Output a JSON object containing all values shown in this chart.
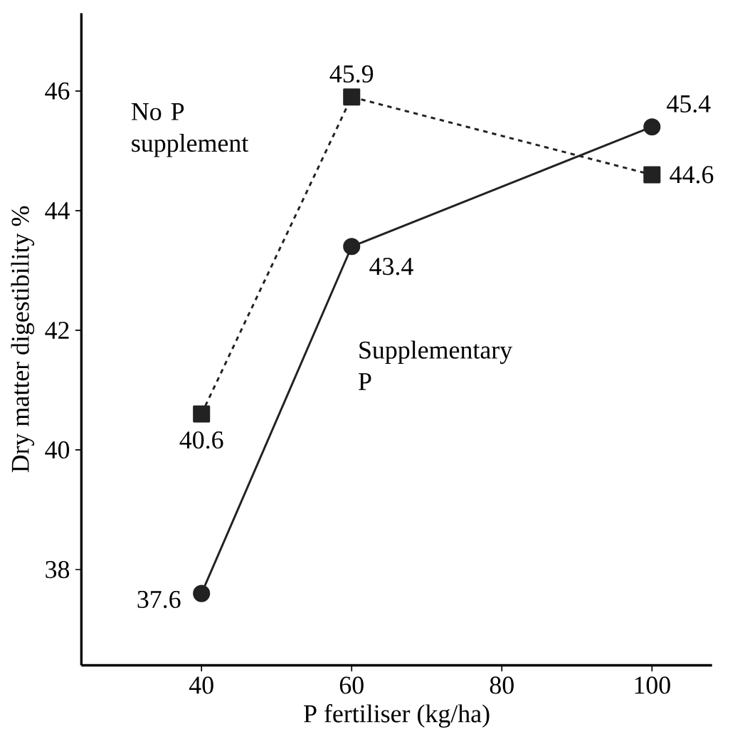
{
  "chart_data": {
    "type": "line",
    "xlabel": "P fertiliser (kg/ha)",
    "ylabel": "Dry matter digestibility %",
    "xlim": [
      24,
      108
    ],
    "xticks": [
      40,
      60,
      80,
      100
    ],
    "ylim": [
      36.4,
      47.3
    ],
    "yticks": [
      38,
      40,
      42,
      44,
      46
    ],
    "grid": false,
    "legend": false,
    "data_labels": true,
    "series": [
      {
        "name": "No P supplement",
        "color": "#222222",
        "x": [
          40,
          60,
          100
        ],
        "values": [
          40.6,
          45.9,
          44.6
        ],
        "marker": "square",
        "line_style": "dashed"
      },
      {
        "name": "Supplementary P",
        "color": "#222222",
        "x": [
          40,
          60,
          100
        ],
        "values": [
          37.6,
          43.4,
          45.4
        ],
        "marker": "circle",
        "line_style": "solid"
      }
    ]
  }
}
